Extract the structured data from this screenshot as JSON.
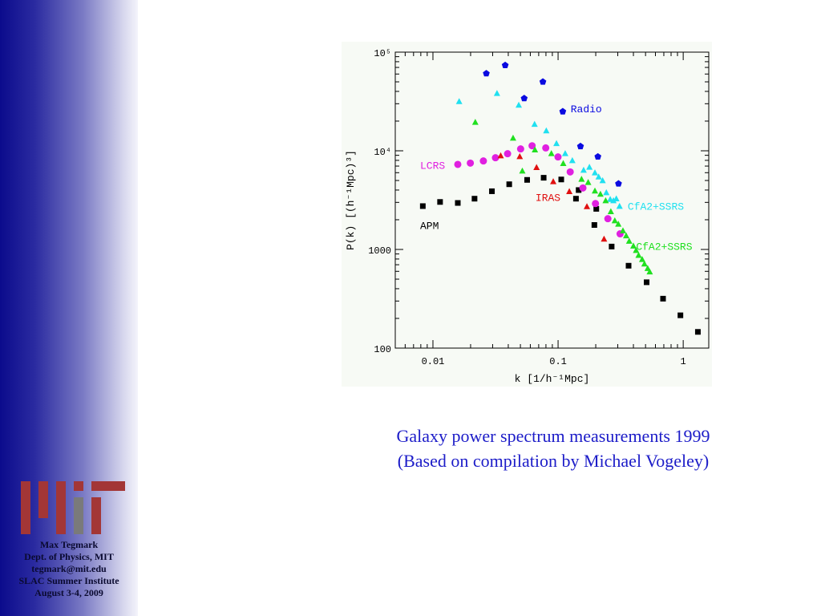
{
  "sidebar": {
    "logo_text": "MIT",
    "credits": [
      "Max Tegmark",
      "Dept. of Physics, MIT",
      "tegmark@mit.edu",
      "SLAC Summer Institute",
      "August 3-4, 2009"
    ]
  },
  "caption": {
    "line1": "Galaxy power spectrum measurements 1999",
    "line2": "(Based on compilation by Michael Vogeley)"
  },
  "chart_data": {
    "type": "scatter",
    "title": "",
    "xlabel": "k [1/h⁻¹Mpc]",
    "ylabel": "P(k) [(h⁻¹Mpc)³]",
    "xscale": "log",
    "yscale": "log",
    "xlim": [
      0.005,
      1.6
    ],
    "ylim": [
      100,
      100000
    ],
    "xticks": [
      {
        "v": 0.01,
        "label": "0.01"
      },
      {
        "v": 0.1,
        "label": "0.1"
      },
      {
        "v": 1,
        "label": "1"
      }
    ],
    "yticks": [
      {
        "v": 100000,
        "label": "10⁵"
      },
      {
        "v": 10000,
        "label": "10⁴"
      },
      {
        "v": 1000,
        "label": "1000"
      },
      {
        "v": 100,
        "label": "100"
      }
    ],
    "grid": false,
    "series": [
      {
        "name": "APM",
        "marker": "square",
        "color": "#000000",
        "label_at": [
          0.0079,
          1770
        ],
        "x": [
          0.0083,
          0.0114,
          0.0158,
          0.0215,
          0.0296,
          0.0407,
          0.0566,
          0.0767,
          0.106,
          0.146,
          0.139,
          0.202,
          0.195,
          0.268,
          0.366,
          0.51,
          0.69,
          0.95,
          1.31
        ],
        "y": [
          2750,
          3030,
          2960,
          3270,
          3890,
          4580,
          5070,
          5330,
          5120,
          4000,
          3270,
          2580,
          1770,
          1070,
          684,
          465,
          317,
          215,
          146
        ]
      },
      {
        "name": "Radio",
        "marker": "pentagon",
        "color": "#0a0ae0",
        "label_at": [
          0.126,
          27000
        ],
        "x": [
          0.0267,
          0.0378,
          0.0536,
          0.0756,
          0.109,
          0.151,
          0.208,
          0.304
        ],
        "y": [
          60700,
          73600,
          34000,
          50000,
          25000,
          11100,
          8720,
          4640
        ]
      },
      {
        "name": "LCRS",
        "marker": "circle",
        "color": "#e020e0",
        "label_at": [
          0.0079,
          7200
        ],
        "x": [
          0.0158,
          0.0199,
          0.0253,
          0.0316,
          0.0395,
          0.0502,
          0.062,
          0.0797,
          0.0999,
          0.125,
          0.158,
          0.199,
          0.25,
          0.313
        ],
        "y": [
          7280,
          7500,
          7890,
          8500,
          9340,
          10450,
          11250,
          10700,
          8660,
          6110,
          4200,
          2920,
          2050,
          1440
        ]
      },
      {
        "name": "IRAS",
        "marker": "triangle",
        "color": "#e01010",
        "label_at": [
          0.066,
          3400
        ],
        "x": [
          0.0348,
          0.0494,
          0.0673,
          0.0915,
          0.123,
          0.17,
          0.233
        ],
        "y": [
          8880,
          8720,
          6750,
          4850,
          3850,
          2710,
          1270
        ]
      },
      {
        "name": "CfA2+SSRS",
        "marker": "triangle",
        "color": "#20e0f0",
        "label_at": [
          0.36,
          2780
        ],
        "x": [
          0.0162,
          0.0325,
          0.0485,
          0.0649,
          0.0805,
          0.0971,
          0.114,
          0.13,
          0.16,
          0.178,
          0.197,
          0.211,
          0.227,
          0.243,
          0.261,
          0.277,
          0.292,
          0.31
        ],
        "y": [
          31500,
          38000,
          28900,
          18500,
          15900,
          11800,
          9340,
          7940,
          6340,
          6790,
          5960,
          5420,
          4970,
          3750,
          3210,
          3110,
          3250,
          2730
        ]
      },
      {
        "name": "CfA2+SSRS",
        "marker": "triangle",
        "color": "#20e020",
        "label_at": [
          0.42,
          1090
        ],
        "x": [
          0.0218,
          0.0437,
          0.0518,
          0.0653,
          0.0884,
          0.11,
          0.154,
          0.174,
          0.197,
          0.218,
          0.24,
          0.264,
          0.284,
          0.303,
          0.33,
          0.35,
          0.37,
          0.4,
          0.42,
          0.44,
          0.47,
          0.49,
          0.52,
          0.54
        ],
        "y": [
          19400,
          13400,
          6220,
          10200,
          9340,
          7410,
          5130,
          4760,
          3900,
          3620,
          3110,
          2410,
          1950,
          1800,
          1540,
          1370,
          1210,
          1080,
          975,
          870,
          790,
          710,
          640,
          590
        ]
      }
    ]
  }
}
